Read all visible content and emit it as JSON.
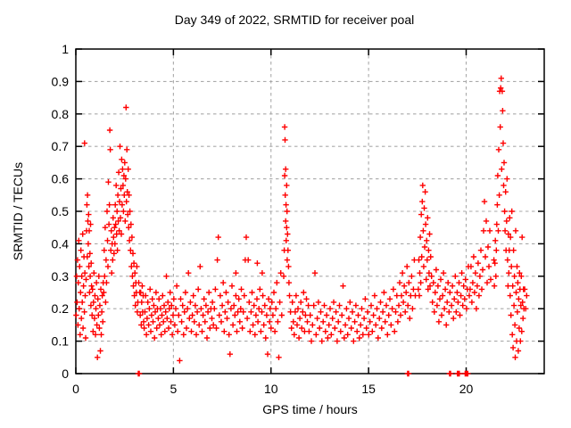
{
  "chart_data": {
    "type": "scatter",
    "title": "Day 349 of 2022, SRMTID for receiver poal",
    "xlabel": "GPS time / hours",
    "ylabel": "SRMTID / TECUs",
    "xlim": [
      0,
      24
    ],
    "ylim": [
      0,
      1
    ],
    "xticks": [
      0,
      5,
      10,
      15,
      20
    ],
    "yticks": [
      0,
      0.1,
      0.2,
      0.3,
      0.4,
      0.5,
      0.6,
      0.7,
      0.8,
      0.9,
      1
    ],
    "grid": true,
    "legend": "none",
    "marker": "plus",
    "marker_color": "#ff0000",
    "grid_color": "#aaaaaa",
    "axis_color": "#000000",
    "series": [
      {
        "name": "SRMTID",
        "segments": [
          {
            "x0": 0.02,
            "dx": 0.022,
            "y": [
              0.18,
              0.3,
              0.22,
              0.35,
              0.15,
              0.28,
              0.41,
              0.2,
              0.33,
              0.12,
              0.25,
              0.38,
              0.17,
              0.3,
              0.22,
              0.43,
              0.14,
              0.27,
              0.36,
              0.19,
              0.31,
              0.24,
              0.11,
              0.29
            ]
          },
          {
            "x0": 0.55,
            "dx": 0.017,
            "y": [
              0.44,
              0.52,
              0.36,
              0.55,
              0.47,
              0.4,
              0.49,
              0.33,
              0.44,
              0.25,
              0.37,
              0.3,
              0.46,
              0.21,
              0.34,
              0.27
            ]
          },
          {
            "x0": 0.83,
            "dx": 0.025,
            "y": [
              0.18,
              0.26,
              0.13,
              0.22,
              0.31,
              0.17,
              0.24,
              0.12,
              0.2,
              0.28,
              0.15,
              0.05,
              0.23,
              0.18,
              0.3,
              0.14,
              0.21,
              0.07,
              0.26,
              0.12,
              0.19,
              0.24,
              0.16,
              0.28
            ]
          },
          {
            "x0": 1.43,
            "dx": 0.024,
            "y": [
              0.25,
              0.38,
              0.3,
              0.45,
              0.22,
              0.35,
              0.28,
              0.5,
              0.41,
              0.33,
              0.59,
              0.46,
              0.52,
              0.75,
              0.69,
              0.38,
              0.44,
              0.31,
              0.4,
              0.35,
              0.48,
              0.42,
              0.37,
              0.45
            ]
          },
          {
            "x0": 2.0,
            "dx": 0.022,
            "y": [
              0.4,
              0.52,
              0.46,
              0.58,
              0.43,
              0.5,
              0.38,
              0.55,
              0.47,
              0.62,
              0.44,
              0.53,
              0.7,
              0.48,
              0.57,
              0.43,
              0.66,
              0.52,
              0.63,
              0.58,
              0.5,
              0.61,
              0.55,
              0.65,
              0.47,
              0.6,
              0.82,
              0.53,
              0.69,
              0.56,
              0.49,
              0.63,
              0.45,
              0.55,
              0.41,
              0.5
            ]
          },
          {
            "x0": 2.8,
            "dx": 0.025,
            "y": [
              0.38,
              0.46,
              0.33,
              0.42,
              0.3,
              0.37,
              0.27,
              0.34,
              0.24,
              0.31,
              0.21,
              0.28,
              0.25,
              0.33,
              0.19,
              0.22,
              0.0,
              0.28,
              0.0,
              0.25,
              0.18,
              0.25,
              0.15,
              0.22,
              0.27,
              0.19,
              0.24,
              0.16
            ]
          },
          {
            "x0": 3.5,
            "dx": 0.038,
            "y": [
              0.14,
              0.19,
              0.24,
              0.12,
              0.17,
              0.22,
              0.15,
              0.2,
              0.26,
              0.13,
              0.18,
              0.23,
              0.16,
              0.21,
              0.11,
              0.19,
              0.25,
              0.14,
              0.2,
              0.17,
              0.23,
              0.15,
              0.2,
              0.12,
              0.18,
              0.24,
              0.16,
              0.21,
              0.13,
              0.19,
              0.3,
              0.17,
              0.22,
              0.14,
              0.2,
              0.25,
              0.16,
              0.21,
              0.12,
              0.18
            ]
          },
          {
            "x0": 5.02,
            "dx": 0.05,
            "y": [
              0.23,
              0.15,
              0.2,
              0.27,
              0.13,
              0.18,
              0.04,
              0.23,
              0.16,
              0.21,
              0.12,
              0.19,
              0.25,
              0.14,
              0.2,
              0.31,
              0.17,
              0.22,
              0.13,
              0.18,
              0.24,
              0.16,
              0.21,
              0.12,
              0.19,
              0.26,
              0.15,
              0.33,
              0.2,
              0.13,
              0.18,
              0.23,
              0.16,
              0.21,
              0.11,
              0.19,
              0.25,
              0.14,
              0.2,
              0.17
            ]
          },
          {
            "x0": 7.0,
            "dx": 0.05,
            "y": [
              0.22,
              0.15,
              0.2,
              0.26,
              0.14,
              0.35,
              0.42,
              0.18,
              0.24,
              0.16,
              0.21,
              0.28,
              0.13,
              0.19,
              0.25,
              0.17,
              0.22,
              0.12,
              0.06,
              0.2,
              0.27,
              0.15,
              0.21,
              0.18,
              0.24,
              0.13,
              0.19,
              0.23,
              0.16,
              0.2
            ]
          },
          {
            "x0": 8.48,
            "dx": 0.05,
            "y": [
              0.26,
              0.14,
              0.19,
              0.24,
              0.35,
              0.42,
              0.17,
              0.35,
              0.22,
              0.13,
              0.19,
              0.25,
              0.15,
              0.21,
              0.12,
              0.18,
              0.23,
              0.16,
              0.2,
              0.26,
              0.13,
              0.19,
              0.24,
              0.15,
              0.21,
              0.11,
              0.18,
              0.06,
              0.23,
              0.16
            ]
          },
          {
            "x0": 9.95,
            "dx": 0.05,
            "y": [
              0.2,
              0.14,
              0.22,
              0.18,
              0.25,
              0.13,
              0.2,
              0.28,
              0.16,
              0.05,
              0.22,
              0.31,
              0.18
            ]
          },
          {
            "x0": 11.0,
            "dx": 0.048,
            "y": [
              0.19,
              0.14,
              0.22,
              0.16,
              0.12,
              0.19,
              0.24,
              0.15,
              0.2,
              0.11,
              0.17,
              0.22,
              0.14,
              0.19,
              0.25,
              0.13,
              0.18,
              0.23,
              0.16,
              0.21
            ]
          },
          {
            "x0": 11.95,
            "dx": 0.06,
            "y": [
              0.13,
              0.18,
              0.1,
              0.15,
              0.21,
              0.31,
              0.12,
              0.17,
              0.22,
              0.14,
              0.19,
              0.1,
              0.16,
              0.21,
              0.13,
              0.18,
              0.11,
              0.15,
              0.2,
              0.12,
              0.17,
              0.22,
              0.14,
              0.19,
              0.1,
              0.16,
              0.21,
              0.13,
              0.18,
              0.27,
              0.11,
              0.15,
              0.2,
              0.12,
              0.17,
              0.22,
              0.14,
              0.19,
              0.1,
              0.16,
              0.21,
              0.13,
              0.18,
              0.11,
              0.15,
              0.2,
              0.12,
              0.17,
              0.23,
              0.14
            ]
          },
          {
            "x0": 14.95,
            "dx": 0.06,
            "y": [
              0.19,
              0.12,
              0.16,
              0.21,
              0.13,
              0.18,
              0.24,
              0.15,
              0.2,
              0.11,
              0.17,
              0.22,
              0.14,
              0.19,
              0.25,
              0.16,
              0.21,
              0.12,
              0.18,
              0.23,
              0.15,
              0.2,
              0.26,
              0.13,
              0.19,
              0.24
            ]
          },
          {
            "x0": 16.5,
            "dx": 0.047,
            "y": [
              0.16,
              0.21,
              0.28,
              0.18,
              0.24,
              0.31,
              0.22,
              0.27,
              0.19,
              0.25,
              0.33,
              0.21,
              0.28,
              0.17,
              0.24,
              0.3,
              0.2,
              0.26,
              0.35,
              0.24
            ]
          },
          {
            "x0": 17.55,
            "dx": 0.025,
            "y": [
              0.26,
              0.35,
              0.24,
              0.31,
              0.42,
              0.28,
              0.49,
              0.36,
              0.53,
              0.58,
              0.44,
              0.33,
              0.51,
              0.39,
              0.56,
              0.46,
              0.29,
              0.41,
              0.35,
              0.48,
              0.26,
              0.38,
              0.31,
              0.43,
              0.27
            ]
          },
          {
            "x0": 18.18,
            "dx": 0.047,
            "y": [
              0.36,
              0.3,
              0.22,
              0.28,
              0.19,
              0.25,
              0.32,
              0.21,
              0.27,
              0.16,
              0.23,
              0.29,
              0.18,
              0.24,
              0.31,
              0.2,
              0.26,
              0.15,
              0.22,
              0.28,
              0.19,
              0.25
            ]
          },
          {
            "x0": 19.25,
            "dx": 0.048,
            "y": [
              0.21,
              0.27,
              0.17,
              0.23,
              0.3,
              0.19,
              0.25,
              0.22,
              0.28,
              0.18,
              0.24,
              0.31,
              0.21,
              0.27,
              0.23,
              0.29,
              0.2,
              0.26,
              0.33,
              0.24
            ]
          },
          {
            "x0": 20.2,
            "dx": 0.046,
            "y": [
              0.26,
              0.33,
              0.22,
              0.28,
              0.36,
              0.25,
              0.31,
              0.2,
              0.27,
              0.34,
              0.24,
              0.3,
              0.38,
              0.26,
              0.32,
              0.44,
              0.53,
              0.36,
              0.47,
              0.28,
              0.39,
              0.33,
              0.44,
              0.29
            ]
          },
          {
            "x0": 21.42,
            "dx": 0.025,
            "y": [
              0.35,
              0.27,
              0.34,
              0.41,
              0.3,
              0.38,
              0.46,
              0.52,
              0.61,
              0.44,
              0.69,
              0.55,
              0.87,
              0.76,
              0.88,
              0.91,
              0.63,
              0.87,
              0.81,
              0.71,
              0.58,
              0.65,
              0.5,
              0.44,
              0.56,
              0.38,
              0.47,
              0.6
            ]
          },
          {
            "x0": 22.12,
            "dx": 0.022,
            "y": [
              0.35,
              0.27,
              0.43,
              0.31,
              0.38,
              0.48,
              0.24,
              0.42,
              0.18,
              0.33,
              0.5,
              0.12,
              0.27,
              0.08,
              0.38,
              0.21,
              0.3,
              0.15,
              0.05,
              0.44,
              0.25,
              0.1,
              0.33,
              0.19,
              0.28,
              0.07,
              0.23,
              0.14,
              0.31,
              0.26,
              0.1,
              0.21,
              0.3,
              0.13,
              0.42,
              0.22,
              0.17,
              0.26,
              0.2
            ]
          }
        ],
        "points": [
          [
            0.45,
            0.71
          ],
          [
            8.2,
            0.31
          ],
          [
            9.3,
            0.34
          ],
          [
            9.55,
            0.31
          ],
          [
            10.65,
            0.3
          ],
          [
            10.68,
            0.38
          ],
          [
            10.7,
            0.76
          ],
          [
            10.7,
            0.61
          ],
          [
            10.72,
            0.72
          ],
          [
            10.73,
            0.55
          ],
          [
            10.75,
            0.63
          ],
          [
            10.75,
            0.47
          ],
          [
            10.77,
            0.52
          ],
          [
            10.78,
            0.41
          ],
          [
            10.8,
            0.58
          ],
          [
            10.8,
            0.45
          ],
          [
            10.82,
            0.5
          ],
          [
            10.83,
            0.35
          ],
          [
            10.85,
            0.43
          ],
          [
            10.87,
            0.38
          ],
          [
            10.9,
            0.33
          ],
          [
            10.92,
            0.28
          ],
          [
            10.95,
            0.24
          ],
          [
            17.0,
            0.0
          ],
          [
            17.05,
            0.0
          ],
          [
            19.15,
            0.0
          ],
          [
            19.2,
            0.0
          ],
          [
            19.55,
            0.0
          ],
          [
            19.58,
            0.0
          ],
          [
            19.6,
            0.0
          ],
          [
            19.62,
            0.0
          ],
          [
            19.65,
            0.0
          ],
          [
            19.95,
            0.0
          ],
          [
            19.98,
            0.0
          ],
          [
            20.0,
            0.0
          ],
          [
            20.02,
            0.0
          ],
          [
            20.05,
            0.0
          ],
          [
            20.08,
            0.0
          ],
          [
            23.0,
            0.26
          ],
          [
            23.05,
            0.2
          ],
          [
            23.1,
            0.24
          ]
        ]
      }
    ]
  }
}
